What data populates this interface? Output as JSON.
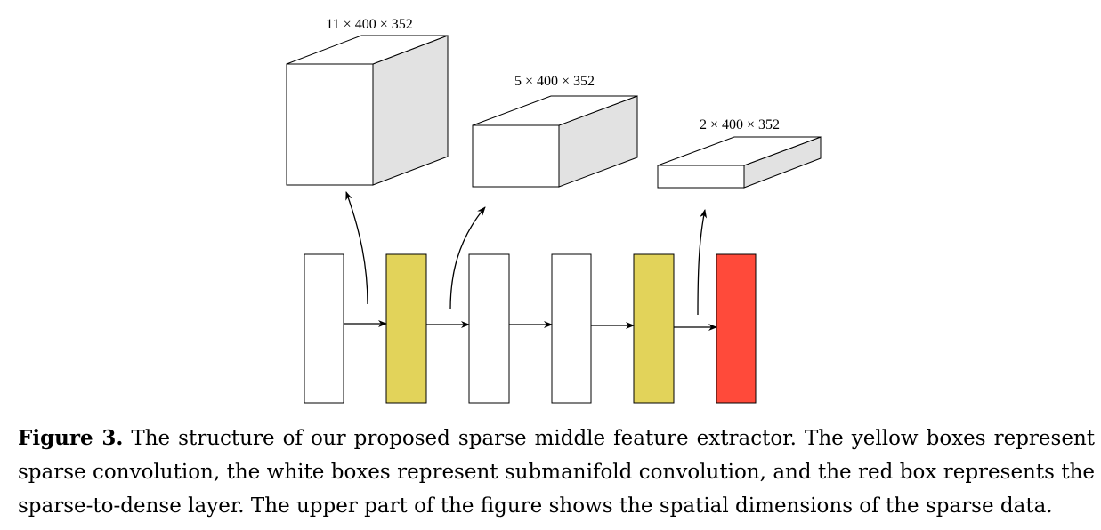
{
  "diagram": {
    "volumes": [
      {
        "label": "11 × 400 × 352"
      },
      {
        "label": "5 × 400 × 352"
      },
      {
        "label": "2 × 400 × 352"
      }
    ],
    "layers": [
      {
        "type": "submanifold convolution",
        "color": "#ffffff"
      },
      {
        "type": "sparse convolution",
        "color": "#e2d35a"
      },
      {
        "type": "submanifold convolution",
        "color": "#ffffff"
      },
      {
        "type": "submanifold convolution",
        "color": "#ffffff"
      },
      {
        "type": "sparse convolution",
        "color": "#e2d35a"
      },
      {
        "type": "sparse-to-dense layer",
        "color": "#ff4a3a"
      }
    ],
    "volume_side_color": "#e2e2e2"
  },
  "caption": {
    "label": "Figure 3.",
    "text": " The structure of our proposed sparse middle feature extractor. The yellow boxes represent sparse convolution, the white boxes represent submanifold convolution, and the red box represents the sparse-to-dense layer. The upper part of the figure shows the spatial dimensions of the sparse data."
  }
}
